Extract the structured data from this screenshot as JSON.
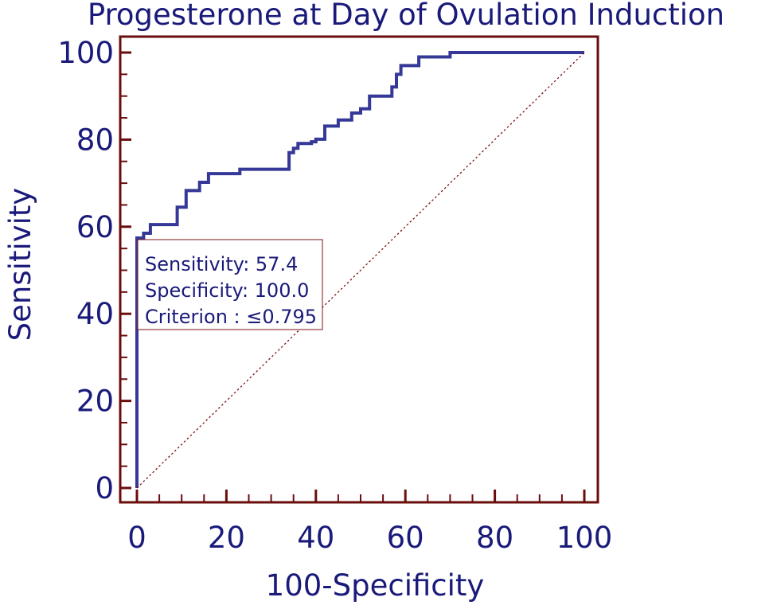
{
  "chart_data": {
    "type": "line",
    "title": "Progesterone at Day of Ovulation Induction",
    "xlabel": "100-Specificity",
    "ylabel": "Sensitivity",
    "xlim": [
      0,
      100
    ],
    "ylim": [
      0,
      100
    ],
    "x_ticks": [
      0,
      20,
      40,
      60,
      80,
      100
    ],
    "y_ticks": [
      0,
      20,
      40,
      60,
      80,
      100
    ],
    "x_tick_labels": [
      "0",
      "20",
      "40",
      "60",
      "80",
      "100"
    ],
    "y_tick_labels": [
      "0",
      "20",
      "40",
      "60",
      "80",
      "100"
    ],
    "grid": false,
    "series": [
      {
        "kind": "roc-curve",
        "color": "#353896",
        "x": [
          0,
          0,
          0,
          1.5,
          1.5,
          3,
          3,
          9,
          9,
          11,
          11,
          14,
          14,
          16,
          16,
          23,
          23,
          34,
          34,
          35,
          35,
          36,
          36,
          39,
          39,
          40,
          40,
          42,
          42,
          45,
          45,
          48,
          48,
          50,
          50,
          52,
          52,
          57,
          57,
          58,
          58,
          59,
          59,
          63,
          63,
          70,
          70,
          100
        ],
        "y": [
          0,
          57.4,
          57.4,
          57.4,
          58.5,
          58.5,
          60.5,
          60.5,
          64.5,
          64.5,
          68.3,
          68.3,
          70.2,
          70.2,
          72.2,
          72.2,
          73.2,
          73.2,
          77.0,
          77.0,
          78.0,
          78.0,
          79.1,
          79.1,
          79.5,
          79.5,
          80.1,
          80.1,
          83.1,
          83.1,
          84.5,
          84.5,
          86.1,
          86.1,
          87.1,
          87.1,
          90.0,
          90.0,
          92.1,
          92.1,
          95.0,
          95.0,
          97.0,
          97.0,
          99.0,
          99.0,
          100,
          100
        ]
      },
      {
        "kind": "reference-diagonal",
        "color": "#7a1010",
        "x": [
          0,
          100
        ],
        "y": [
          0,
          100
        ]
      }
    ],
    "annotation": {
      "lines": [
        "Sensitivity: 57.4",
        "Specificity: 100.0",
        "Criterion : ≤0.795"
      ]
    }
  },
  "colors": {
    "frame": "#6b0d0d",
    "text": "#1a1a7a",
    "curve": "#353896",
    "diagonal": "#7a1010"
  }
}
